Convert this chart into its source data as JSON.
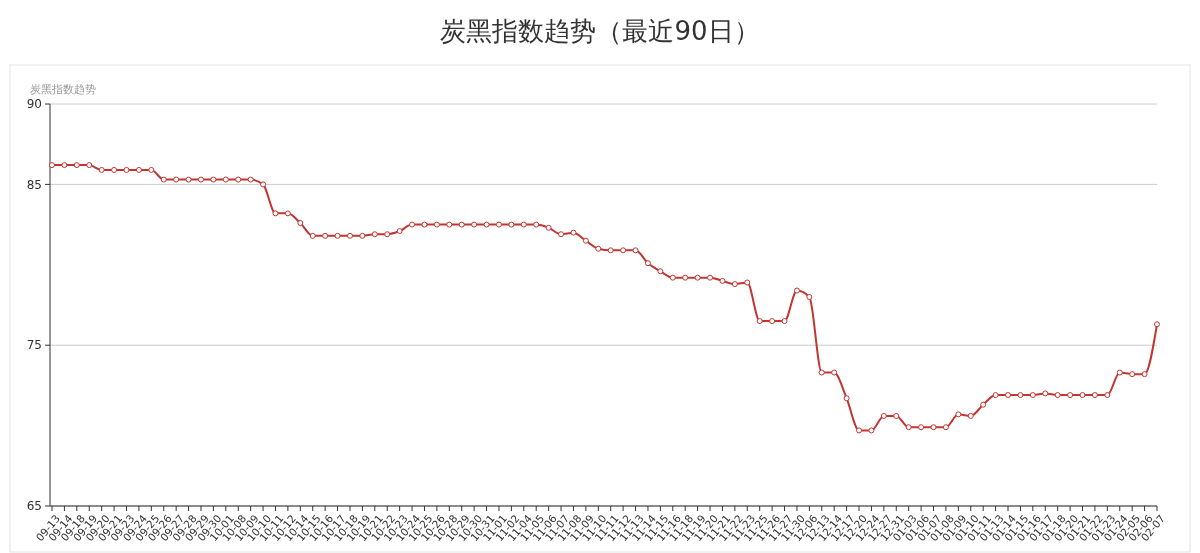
{
  "chart_data": {
    "type": "line",
    "title": "炭黑指数趋势（最近90日）",
    "ylabel": "炭黑指数趋势",
    "categories": [
      "09-13",
      "09-14",
      "09-18",
      "09-19",
      "09-20",
      "09-21",
      "09-23",
      "09-24",
      "09-25",
      "09-26",
      "09-27",
      "09-28",
      "09-29",
      "09-30",
      "10-01",
      "10-08",
      "10-09",
      "10-10",
      "10-11",
      "10-12",
      "10-14",
      "10-15",
      "10-16",
      "10-17",
      "10-18",
      "10-19",
      "10-21",
      "10-22",
      "10-23",
      "10-24",
      "10-25",
      "10-26",
      "10-28",
      "10-29",
      "10-30",
      "10-31",
      "11-01",
      "11-02",
      "11-04",
      "11-05",
      "11-06",
      "11-07",
      "11-08",
      "11-09",
      "11-10",
      "11-11",
      "11-12",
      "11-13",
      "11-14",
      "11-15",
      "11-16",
      "11-18",
      "11-19",
      "11-20",
      "11-21",
      "11-22",
      "11-23",
      "11-25",
      "11-26",
      "11-27",
      "11-30",
      "12-06",
      "12-13",
      "12-14",
      "12-17",
      "12-20",
      "12-24",
      "12-27",
      "12-31",
      "01-03",
      "01-06",
      "01-07",
      "01-08",
      "01-09",
      "01-10",
      "01-11",
      "01-13",
      "01-14",
      "01-15",
      "01-16",
      "01-17",
      "01-18",
      "01-20",
      "01-21",
      "01-22",
      "01-23",
      "01-24",
      "02-05",
      "02-06",
      "02-07"
    ],
    "series": [
      {
        "color": "#c23531",
        "values": [
          86.2,
          86.2,
          86.2,
          86.2,
          85.9,
          85.9,
          85.9,
          85.9,
          85.9,
          85.3,
          85.3,
          85.3,
          85.3,
          85.3,
          85.3,
          85.3,
          85.3,
          85.0,
          83.2,
          83.2,
          82.6,
          81.8,
          81.8,
          81.8,
          81.8,
          81.8,
          81.9,
          81.9,
          82.1,
          82.5,
          82.5,
          82.5,
          82.5,
          82.5,
          82.5,
          82.5,
          82.5,
          82.5,
          82.5,
          82.5,
          82.3,
          81.9,
          82.0,
          81.5,
          81.0,
          80.9,
          80.9,
          80.9,
          80.1,
          79.6,
          79.2,
          79.2,
          79.2,
          79.2,
          79.0,
          78.8,
          78.9,
          76.5,
          76.5,
          76.5,
          78.4,
          78.0,
          73.3,
          73.3,
          71.7,
          69.7,
          69.7,
          70.6,
          70.6,
          69.9,
          69.9,
          69.9,
          69.9,
          70.7,
          70.6,
          71.3,
          71.9,
          71.9,
          71.9,
          71.9,
          72.0,
          71.9,
          71.9,
          71.9,
          71.9,
          71.9,
          73.3,
          73.2,
          73.2,
          76.3
        ]
      }
    ],
    "ylim": [
      65,
      90
    ],
    "yticks": [
      65,
      75,
      85,
      90
    ],
    "grid": "y",
    "marker": "circle",
    "line_style": "solid"
  }
}
